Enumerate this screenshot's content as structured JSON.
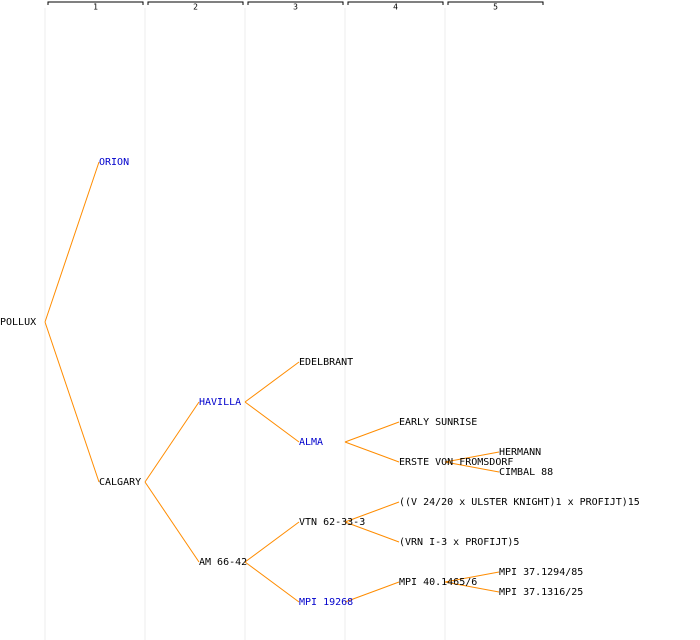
{
  "columns": [
    "1",
    "2",
    "3",
    "4",
    "5"
  ],
  "tree": {
    "label": "POLLUX",
    "children": [
      {
        "label": "ORION",
        "color": "#0000cc"
      },
      {
        "label": "CALGARY",
        "children": [
          {
            "label": "HAVILLA",
            "color": "#0000cc",
            "children": [
              {
                "label": "EDELBRANT"
              },
              {
                "label": "ALMA",
                "color": "#0000cc",
                "children": [
                  {
                    "label": "EARLY SUNRISE"
                  },
                  {
                    "label": "ERSTE VON FROMSDORF",
                    "children": [
                      {
                        "label": "HERMANN"
                      },
                      {
                        "label": "CIMBAL 88"
                      }
                    ]
                  }
                ]
              }
            ]
          },
          {
            "label": "AM 66-42",
            "children": [
              {
                "label": "VTN 62-33-3",
                "children": [
                  {
                    "label": "((V 24/20 x ULSTER KNIGHT)1 x PROFIJT)15"
                  },
                  {
                    "label": "(VRN I-3 x PROFIJT)5"
                  }
                ]
              },
              {
                "label": "MPI 19268",
                "color": "#0000cc",
                "children": [
                  {
                    "label": "MPI 40.1465/6",
                    "children": [
                      {
                        "label": "MPI 37.1294/85"
                      },
                      {
                        "label": "MPI 37.1316/25"
                      }
                    ]
                  }
                ]
              }
            ]
          }
        ]
      }
    ]
  }
}
